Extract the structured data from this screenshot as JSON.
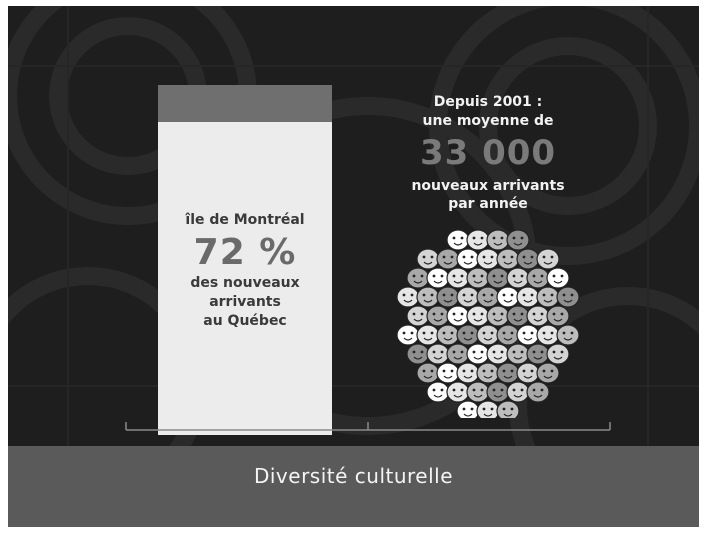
{
  "bar": {
    "title": "île de Montréal",
    "percent": "72 %",
    "line1": "des nouveaux",
    "line2": "arrivants",
    "line3": "au Québec",
    "fill_color": "#ececec",
    "top_color": "#6f6f6f"
  },
  "right": {
    "line1": "Depuis 2001 :",
    "line2": "une moyenne de",
    "number": "33 000",
    "line3": "nouveaux arrivants",
    "line4": "par année"
  },
  "faces_icon": "crowd-of-faces-icon",
  "footer": {
    "label": "Diversité culturelle"
  },
  "colors": {
    "background": "#1e1e1e",
    "footer": "#5a5a5a",
    "accent_gray": "#7a7a7a"
  }
}
